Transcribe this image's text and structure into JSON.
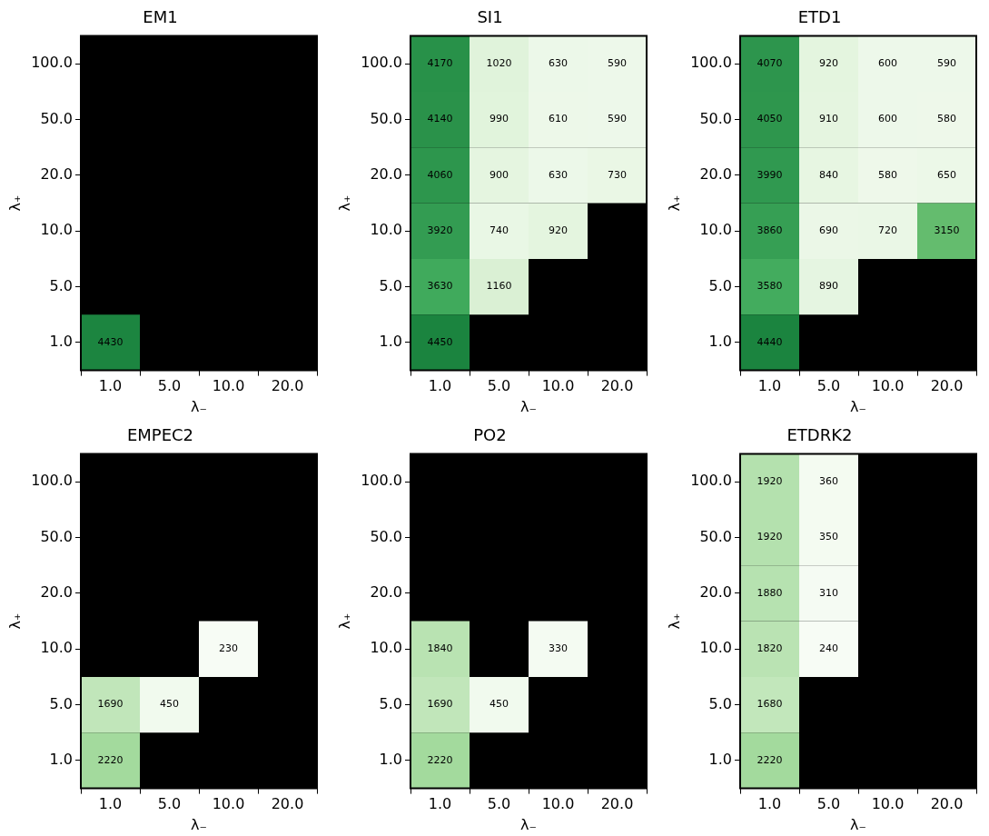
{
  "chart_data": [
    {
      "type": "heatmap",
      "title": "EM1",
      "xlabel": "λ₋",
      "ylabel": "λ₊",
      "categories": [
        "1.0",
        "5.0",
        "10.0",
        "20.0"
      ],
      "y_categories": [
        "100.0",
        "50.0",
        "20.0",
        "10.0",
        "5.0",
        "1.0"
      ],
      "data_labels": true,
      "cells": [
        [
          null,
          null,
          null,
          null
        ],
        [
          null,
          null,
          null,
          null
        ],
        [
          null,
          null,
          null,
          null
        ],
        [
          null,
          null,
          null,
          null
        ],
        [
          null,
          null,
          null,
          null
        ],
        [
          4430,
          null,
          null,
          null
        ]
      ]
    },
    {
      "type": "heatmap",
      "title": "SI1",
      "xlabel": "λ₋",
      "ylabel": "λ₊",
      "categories": [
        "1.0",
        "5.0",
        "10.0",
        "20.0"
      ],
      "y_categories": [
        "100.0",
        "50.0",
        "20.0",
        "10.0",
        "5.0",
        "1.0"
      ],
      "data_labels": true,
      "cells": [
        [
          4170,
          1020,
          630,
          590
        ],
        [
          4140,
          990,
          610,
          590
        ],
        [
          4060,
          900,
          630,
          730
        ],
        [
          3920,
          740,
          920,
          null
        ],
        [
          3630,
          1160,
          null,
          null
        ],
        [
          4450,
          null,
          null,
          null
        ]
      ]
    },
    {
      "type": "heatmap",
      "title": "ETD1",
      "xlabel": "λ₋",
      "ylabel": "λ₊",
      "categories": [
        "1.0",
        "5.0",
        "10.0",
        "20.0"
      ],
      "y_categories": [
        "100.0",
        "50.0",
        "20.0",
        "10.0",
        "5.0",
        "1.0"
      ],
      "data_labels": true,
      "cells": [
        [
          4070,
          920,
          600,
          590
        ],
        [
          4050,
          910,
          600,
          580
        ],
        [
          3990,
          840,
          580,
          650
        ],
        [
          3860,
          690,
          720,
          3150
        ],
        [
          3580,
          890,
          null,
          null
        ],
        [
          4440,
          null,
          null,
          null
        ]
      ]
    },
    {
      "type": "heatmap",
      "title": "EMPEC2",
      "xlabel": "λ₋",
      "ylabel": "λ₊",
      "categories": [
        "1.0",
        "5.0",
        "10.0",
        "20.0"
      ],
      "y_categories": [
        "100.0",
        "50.0",
        "20.0",
        "10.0",
        "5.0",
        "1.0"
      ],
      "data_labels": true,
      "cells": [
        [
          null,
          null,
          null,
          null
        ],
        [
          null,
          null,
          null,
          null
        ],
        [
          null,
          null,
          null,
          null
        ],
        [
          null,
          null,
          230,
          null
        ],
        [
          1690,
          450,
          null,
          null
        ],
        [
          2220,
          null,
          null,
          null
        ]
      ]
    },
    {
      "type": "heatmap",
      "title": "PO2",
      "xlabel": "λ₋",
      "ylabel": "λ₊",
      "categories": [
        "1.0",
        "5.0",
        "10.0",
        "20.0"
      ],
      "y_categories": [
        "100.0",
        "50.0",
        "20.0",
        "10.0",
        "5.0",
        "1.0"
      ],
      "data_labels": true,
      "cells": [
        [
          null,
          null,
          null,
          null
        ],
        [
          null,
          null,
          null,
          null
        ],
        [
          null,
          null,
          null,
          null
        ],
        [
          1840,
          null,
          330,
          null
        ],
        [
          1690,
          450,
          null,
          null
        ],
        [
          2220,
          null,
          null,
          null
        ]
      ]
    },
    {
      "type": "heatmap",
      "title": "ETDRK2",
      "xlabel": "λ₋",
      "ylabel": "λ₊",
      "categories": [
        "1.0",
        "5.0",
        "10.0",
        "20.0"
      ],
      "y_categories": [
        "100.0",
        "50.0",
        "20.0",
        "10.0",
        "5.0",
        "1.0"
      ],
      "data_labels": true,
      "cells": [
        [
          1920,
          360,
          null,
          null
        ],
        [
          1920,
          350,
          null,
          null
        ],
        [
          1880,
          310,
          null,
          null
        ],
        [
          1820,
          240,
          null,
          null
        ],
        [
          1680,
          null,
          null,
          null
        ],
        [
          2220,
          null,
          null,
          null
        ]
      ]
    }
  ]
}
